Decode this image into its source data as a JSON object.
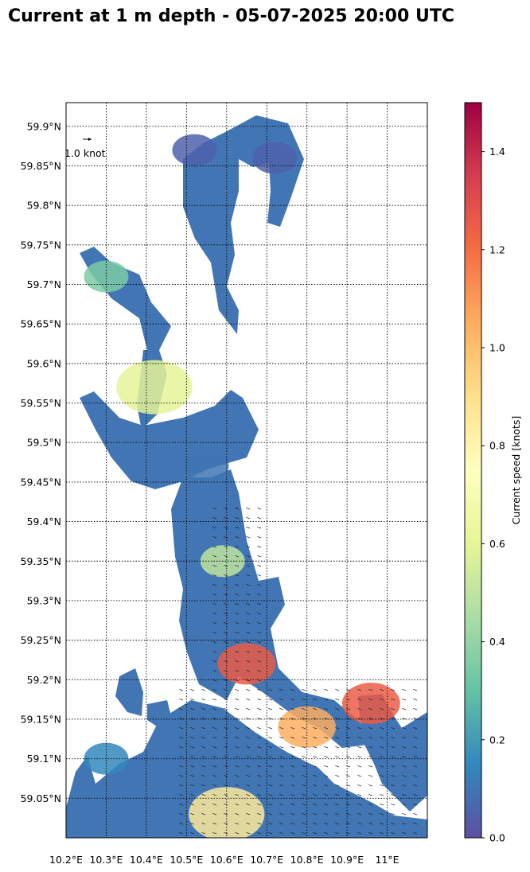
{
  "title": "Current at 1 m depth - 05-07-2025 20:00 UTC",
  "chart_data": {
    "type": "heatmap",
    "subtype": "map-vector-field",
    "title": "Current at 1 m depth - 05-07-2025 20:00 UTC",
    "x_ticks": [
      "10.2°E",
      "10.3°E",
      "10.4°E",
      "10.5°E",
      "10.6°E",
      "10.7°E",
      "10.8°E",
      "10.9°E",
      "11°E"
    ],
    "x_values": [
      10.2,
      10.3,
      10.4,
      10.5,
      10.6,
      10.7,
      10.8,
      10.9,
      11.0
    ],
    "y_ticks": [
      "59.9°N",
      "59.85°N",
      "59.8°N",
      "59.75°N",
      "59.7°N",
      "59.65°N",
      "59.6°N",
      "59.55°N",
      "59.5°N",
      "59.45°N",
      "59.4°N",
      "59.35°N",
      "59.3°N",
      "59.25°N",
      "59.2°N",
      "59.15°N",
      "59.1°N",
      "59.05°N"
    ],
    "y_values": [
      59.9,
      59.85,
      59.8,
      59.75,
      59.7,
      59.65,
      59.6,
      59.55,
      59.5,
      59.45,
      59.4,
      59.35,
      59.3,
      59.25,
      59.2,
      59.15,
      59.1,
      59.05
    ],
    "xlim": [
      10.2,
      11.1
    ],
    "ylim": [
      59.0,
      59.93
    ],
    "grid": true,
    "grid_style": "dotted",
    "quiver_key": {
      "label": "1.0 knot",
      "value": 1.0
    },
    "colorbar": {
      "label": "Current speed [knots]",
      "range": [
        0.0,
        1.5
      ],
      "ticks": [
        "0.0",
        "0.2",
        "0.4",
        "0.6",
        "0.8",
        "1.0",
        "1.2",
        "1.4"
      ],
      "tick_values": [
        0.0,
        0.2,
        0.4,
        0.6,
        0.8,
        1.0,
        1.2,
        1.4
      ],
      "colormap": "Spectral_r",
      "stops": [
        "#5e4fa2",
        "#3288bd",
        "#66c2a5",
        "#abdda4",
        "#e6f598",
        "#ffffbf",
        "#fee08b",
        "#fdae61",
        "#f46d43",
        "#d53e4f",
        "#9e0142"
      ]
    },
    "fjord_speed_samples": [
      {
        "lon": 10.52,
        "lat": 59.87,
        "speed": 0.05
      },
      {
        "lon": 10.72,
        "lat": 59.86,
        "speed": 0.05
      },
      {
        "lon": 10.3,
        "lat": 59.71,
        "speed": 0.35
      },
      {
        "lon": 10.42,
        "lat": 59.57,
        "speed": 0.6
      },
      {
        "lon": 10.55,
        "lat": 59.47,
        "speed": 0.1
      },
      {
        "lon": 10.59,
        "lat": 59.35,
        "speed": 0.5
      },
      {
        "lon": 10.65,
        "lat": 59.22,
        "speed": 1.25
      },
      {
        "lon": 10.8,
        "lat": 59.14,
        "speed": 1.05
      },
      {
        "lon": 10.96,
        "lat": 59.17,
        "speed": 1.25
      },
      {
        "lon": 10.6,
        "lat": 59.03,
        "speed": 0.85
      },
      {
        "lon": 10.3,
        "lat": 59.1,
        "speed": 0.15
      }
    ]
  }
}
